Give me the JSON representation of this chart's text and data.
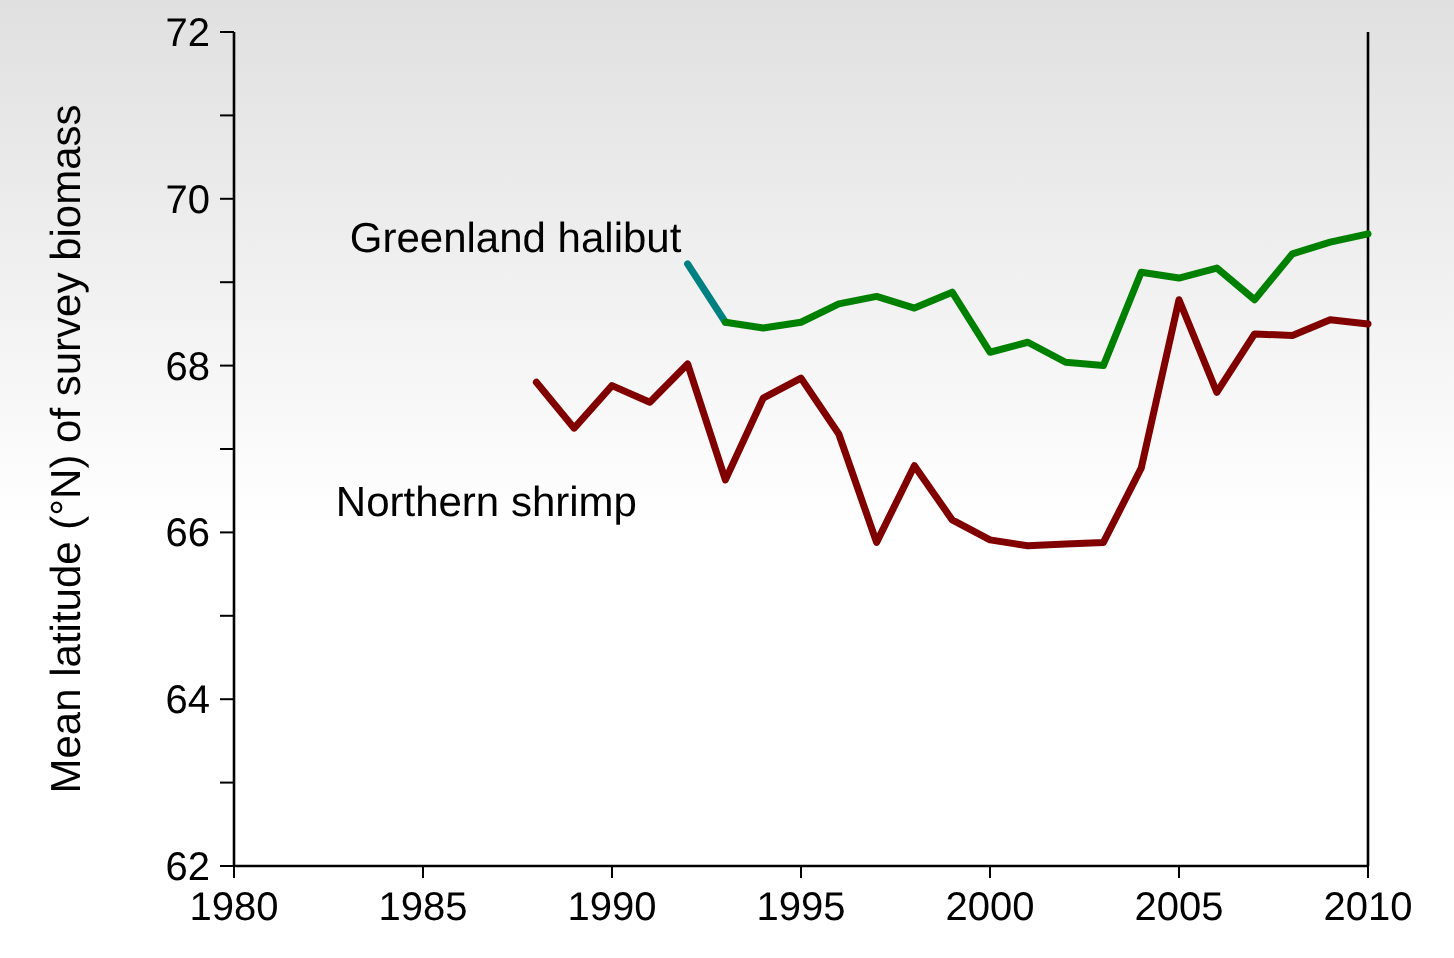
{
  "chart_data": {
    "type": "line",
    "ylabel": "Mean latitude (°N) of survey biomass",
    "xlim": [
      1980,
      2010
    ],
    "xticks": [
      1980,
      1985,
      1990,
      1995,
      2000,
      2005,
      2010
    ],
    "ylim": [
      62,
      72
    ],
    "yticks": [
      62,
      {
        "value": 63,
        "label": null
      },
      64,
      {
        "value": 65,
        "label": null
      },
      66,
      {
        "value": 67,
        "label": null
      },
      68,
      {
        "value": 69,
        "label": null
      },
      70,
      {
        "value": 71,
        "label": null
      },
      72
    ],
    "marker": "none",
    "line_style": "solid",
    "series": [
      {
        "color": "#008080",
        "x": [
          1992,
          1993
        ],
        "values": [
          69.22,
          68.52
        ]
      },
      {
        "name": "Greenland halibut",
        "color": "#008000",
        "x": [
          1993,
          1994,
          1995,
          1996,
          1997,
          1998,
          1999,
          2000,
          2001,
          2002,
          2003,
          2004,
          2005,
          2006,
          2007,
          2008,
          2009,
          2010
        ],
        "values": [
          68.52,
          68.45,
          68.52,
          68.74,
          68.83,
          68.69,
          68.88,
          68.16,
          68.28,
          68.04,
          68.0,
          69.12,
          69.05,
          69.17,
          68.79,
          69.34,
          69.48,
          69.58
        ]
      },
      {
        "name": "Northern shrimp",
        "color": "#800000",
        "x": [
          1988,
          1989,
          1990,
          1991,
          1992,
          1993,
          1994,
          1995,
          1996,
          1997,
          1998,
          1999,
          2000,
          2001,
          2002,
          2003,
          2004,
          2005,
          2006,
          2007,
          2008,
          2009,
          2010
        ],
        "values": [
          67.8,
          67.25,
          67.76,
          67.56,
          68.02,
          66.63,
          67.61,
          67.85,
          67.18,
          65.88,
          66.8,
          66.15,
          65.91,
          65.84,
          65.86,
          65.88,
          66.77,
          68.79,
          67.68,
          68.38,
          68.36,
          68.55,
          68.5
        ]
      }
    ]
  }
}
